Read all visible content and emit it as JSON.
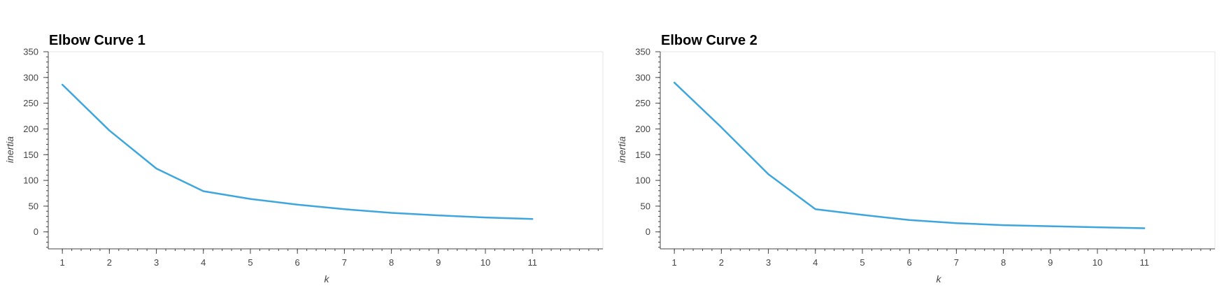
{
  "chart_data": [
    {
      "type": "line",
      "title": "Elbow Curve 1",
      "xlabel": "k",
      "ylabel": "inertia",
      "x": [
        1,
        2,
        3,
        4,
        5,
        6,
        7,
        8,
        9,
        10,
        11
      ],
      "series": [
        {
          "values": [
            286,
            197,
            123,
            79,
            64,
            53,
            44,
            37,
            32,
            28,
            25
          ]
        }
      ],
      "xlim": [
        0.7,
        12.5
      ],
      "ylim": [
        -33,
        350
      ],
      "xticks": [
        1,
        2,
        3,
        4,
        5,
        6,
        7,
        8,
        9,
        10,
        11
      ],
      "yticks": [
        0,
        50,
        100,
        150,
        200,
        250,
        300,
        350
      ],
      "grid": false,
      "line_color": "#3ea6dc"
    },
    {
      "type": "line",
      "title": "Elbow Curve 2",
      "xlabel": "k",
      "ylabel": "inertia",
      "x": [
        1,
        2,
        3,
        4,
        5,
        6,
        7,
        8,
        9,
        10,
        11
      ],
      "series": [
        {
          "values": [
            290,
            203,
            112,
            44,
            33,
            23,
            17,
            13,
            11,
            9,
            7
          ]
        }
      ],
      "xlim": [
        0.7,
        12.5
      ],
      "ylim": [
        -33,
        350
      ],
      "xticks": [
        1,
        2,
        3,
        4,
        5,
        6,
        7,
        8,
        9,
        10,
        11
      ],
      "yticks": [
        0,
        50,
        100,
        150,
        200,
        250,
        300,
        350
      ],
      "grid": false,
      "line_color": "#3ea6dc"
    }
  ]
}
